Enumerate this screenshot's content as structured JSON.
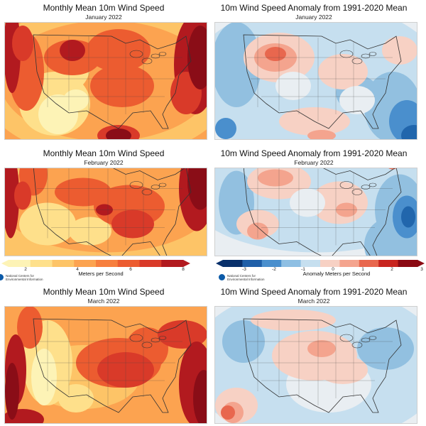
{
  "panels": [
    {
      "id": "abs-jan",
      "type": "absolute",
      "title": "Monthly Mean 10m Wind Speed",
      "subtitle": "January 2022"
    },
    {
      "id": "anom-jan",
      "type": "anomaly",
      "title": "10m Wind Speed Anomaly from 1991-2020 Mean",
      "subtitle": "January 2022"
    },
    {
      "id": "abs-feb",
      "type": "absolute",
      "title": "Monthly Mean 10m Wind Speed",
      "subtitle": "February 2022"
    },
    {
      "id": "anom-feb",
      "type": "anomaly",
      "title": "10m Wind Speed Anomaly from 1991-2020 Mean",
      "subtitle": "February 2022"
    },
    {
      "id": "abs-mar",
      "type": "absolute",
      "title": "Monthly Mean 10m Wind Speed",
      "subtitle": "March 2022"
    },
    {
      "id": "anom-mar",
      "type": "anomaly",
      "title": "10m Wind Speed Anomaly from 1991-2020 Mean",
      "subtitle": "March 2022"
    }
  ],
  "legend_speed": {
    "ticks": [
      "2",
      "4",
      "6",
      "8"
    ],
    "units": "Meters per Second",
    "colors": [
      "#fdf3b6",
      "#fee08b",
      "#fdc467",
      "#fca350",
      "#f77f3e",
      "#ec5c30",
      "#d93a29",
      "#b21a1f"
    ]
  },
  "legend_anomaly": {
    "ticks": [
      "-3",
      "-2",
      "-1",
      "0",
      "1",
      "2",
      "3"
    ],
    "units": "Anomaly Meters per Second",
    "colors": [
      "#08306b",
      "#1f5fa8",
      "#4a8fcd",
      "#8ebfe3",
      "#c6dfef",
      "#f7d1c4",
      "#f4a48e",
      "#e8674e",
      "#c8251f",
      "#8b0a13"
    ]
  },
  "credit": "National Centers for Environmental Information",
  "palette": {
    "absolute": [
      "#fdf3b6",
      "#fee08b",
      "#fdc467",
      "#fca350",
      "#f77f3e",
      "#ec5c30",
      "#d93a29",
      "#b21a1f",
      "#8a0d17"
    ],
    "anomaly": [
      "#2166ac",
      "#4a8fcd",
      "#92c0e0",
      "#c6dfef",
      "#e9eef2",
      "#f7d1c4",
      "#f4a48e",
      "#e8674e",
      "#c8251f"
    ]
  }
}
